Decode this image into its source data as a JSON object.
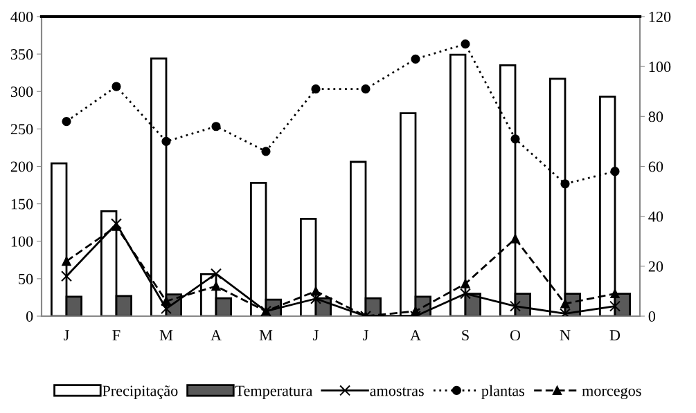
{
  "chart_data": {
    "type": "bar",
    "categories": [
      "J",
      "F",
      "M",
      "A",
      "M",
      "J",
      "J",
      "A",
      "S",
      "O",
      "N",
      "D"
    ],
    "series": [
      {
        "name": "Precipitação",
        "color": "#ffffff",
        "values": [
          204,
          140,
          344,
          56,
          178,
          130,
          206,
          271,
          349,
          335,
          317,
          293
        ]
      },
      {
        "name": "Temperatura",
        "color": "#595959",
        "values": [
          26,
          27,
          29,
          24,
          22,
          24,
          24,
          26,
          30,
          30,
          30,
          30
        ]
      },
      {
        "name": "amostras",
        "type": "line",
        "axis": "y2",
        "color": "#000000",
        "marker": "cross",
        "line_style": "solid",
        "values": [
          16,
          37,
          3,
          17,
          2,
          7,
          0,
          0,
          9,
          4,
          1,
          4
        ]
      },
      {
        "name": "plantas",
        "type": "line",
        "axis": "y2",
        "color": "#000000",
        "marker": "circle",
        "line_style": "dotted",
        "values": [
          78,
          92,
          70,
          76,
          66,
          91,
          91,
          103,
          109,
          71,
          53,
          58
        ]
      },
      {
        "name": "morcegos",
        "type": "line",
        "axis": "y2",
        "color": "#000000",
        "marker": "triangle",
        "line_style": "dashed",
        "values": [
          22,
          36,
          6,
          12,
          2,
          10,
          0,
          2,
          13,
          31,
          5,
          9
        ]
      }
    ],
    "ylim": [
      0,
      400
    ],
    "yticks": [
      0,
      50,
      100,
      150,
      200,
      250,
      300,
      350,
      400
    ],
    "y2lim": [
      0,
      120
    ],
    "y2ticks": [
      0,
      20,
      40,
      60,
      80,
      100,
      120
    ],
    "grid": false,
    "legend": "bottom"
  }
}
